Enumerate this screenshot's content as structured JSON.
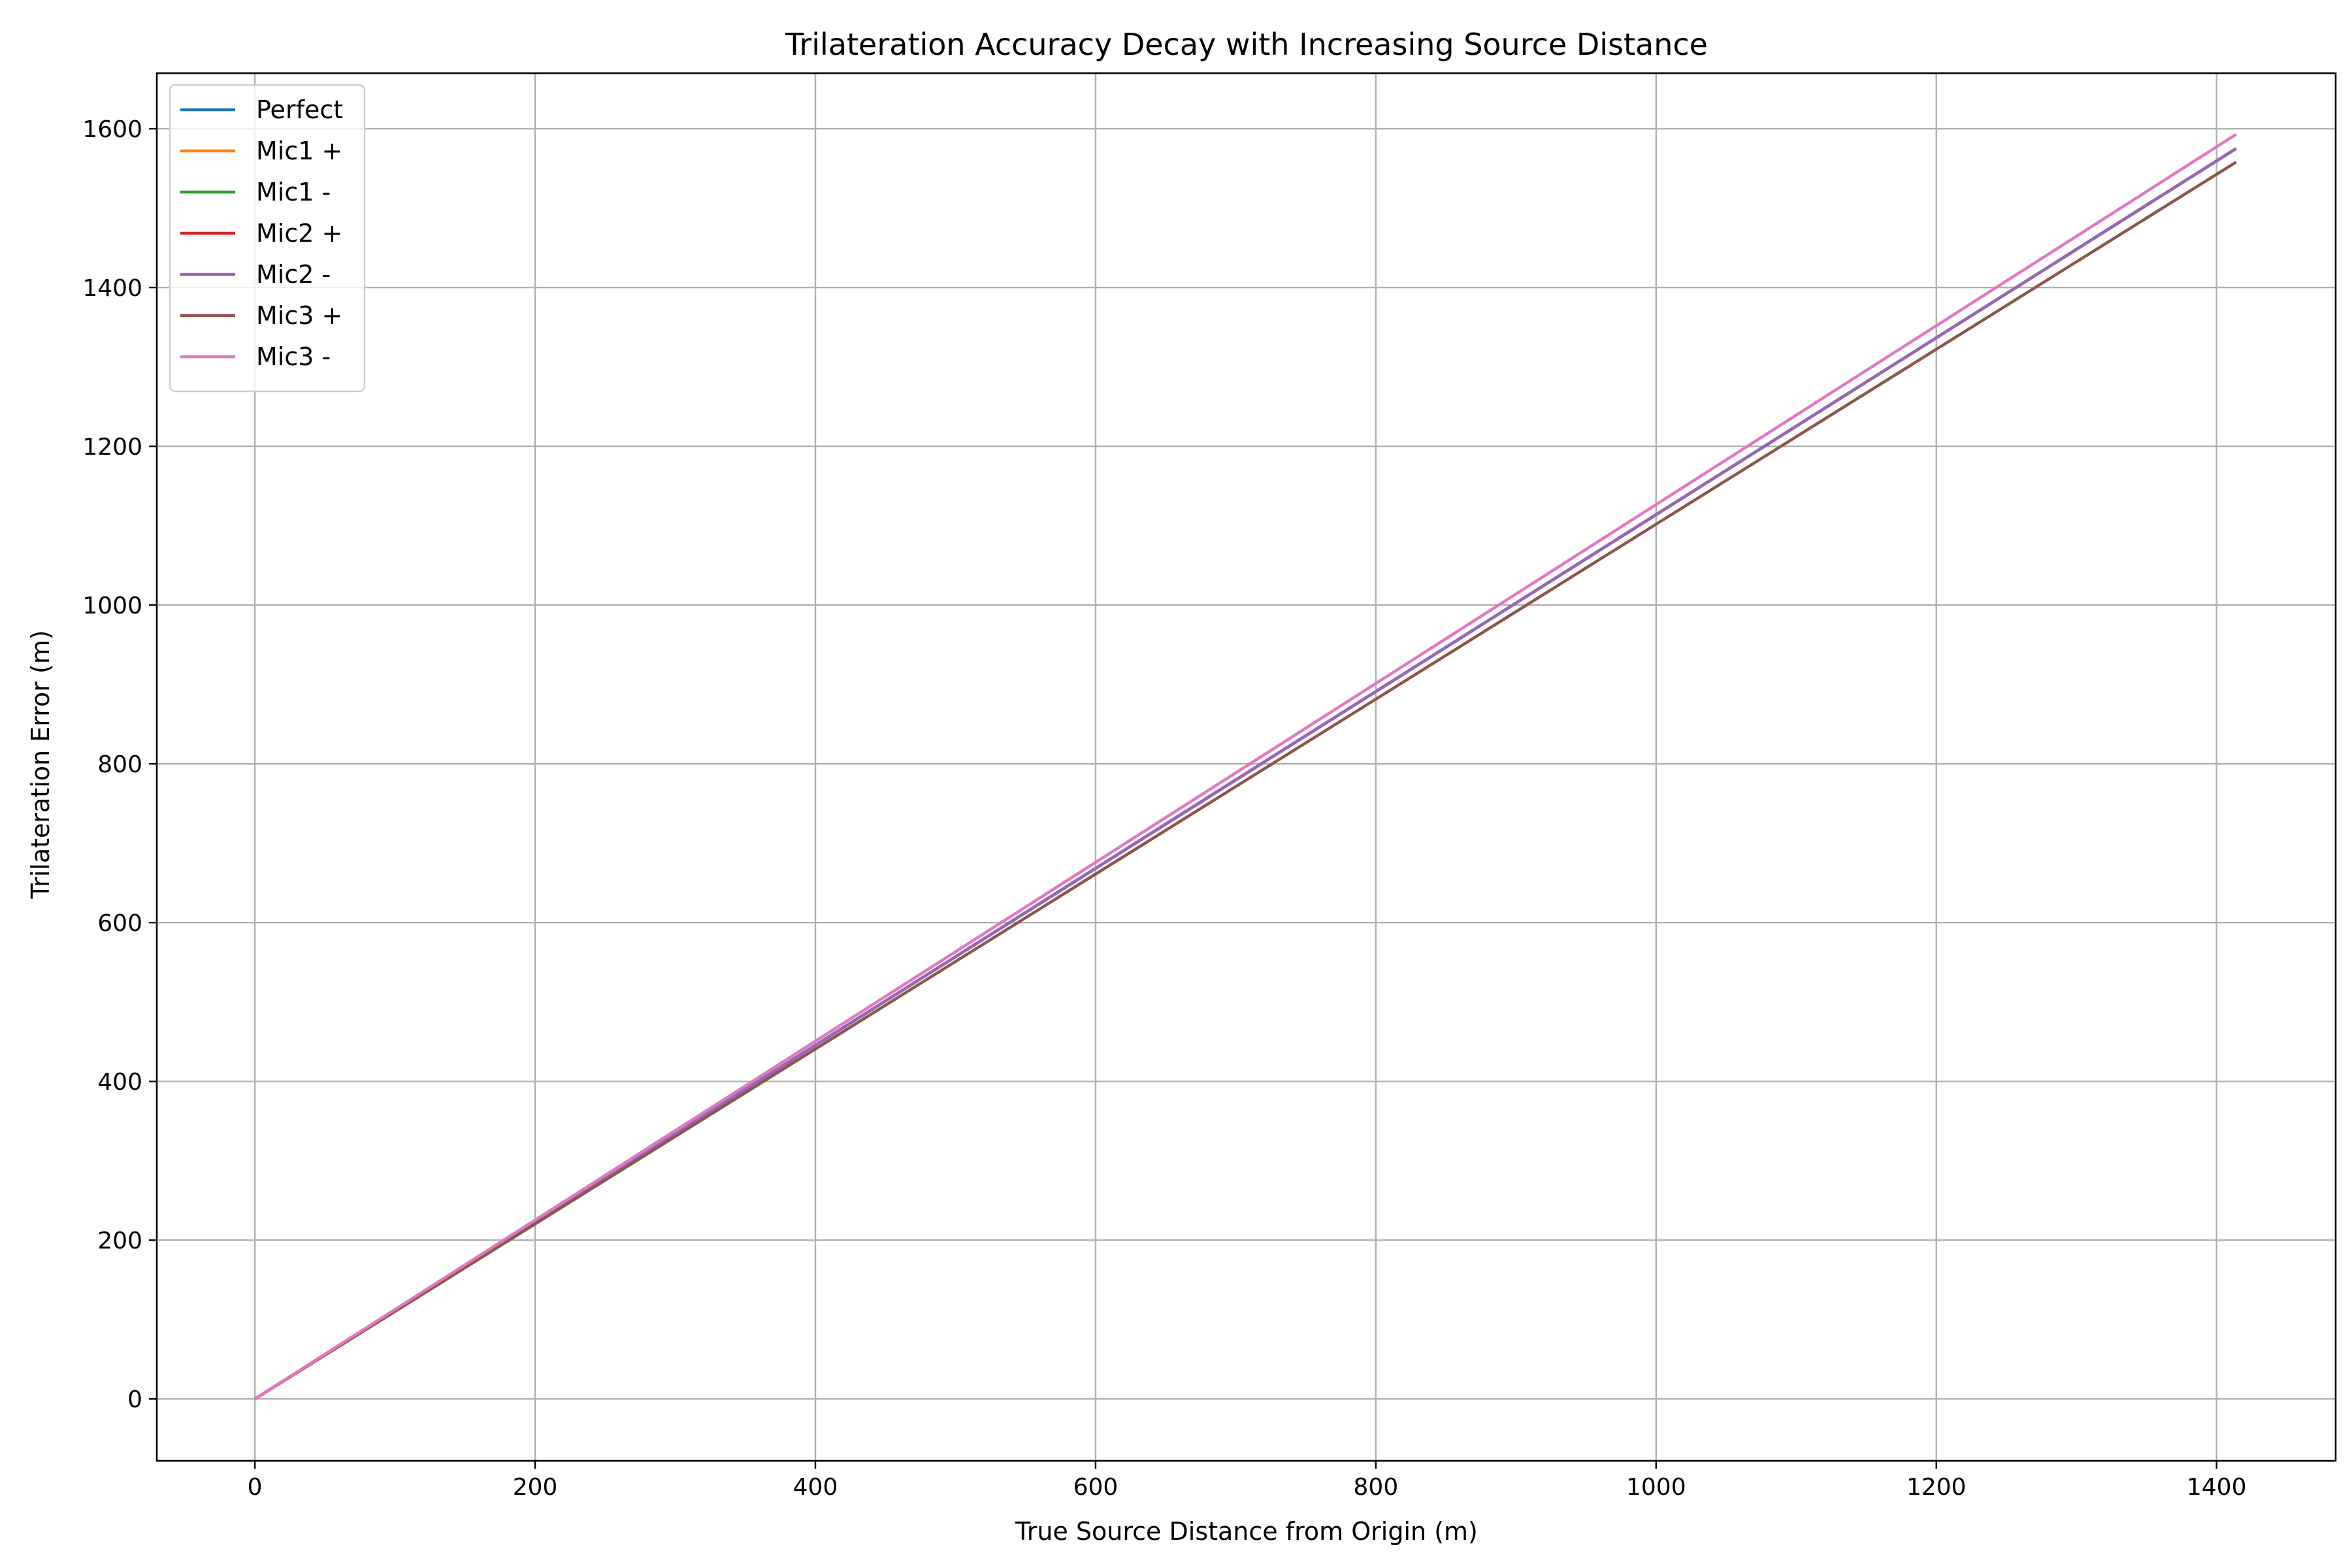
{
  "chart_data": {
    "type": "line",
    "title": "Trilateration Accuracy Decay with Increasing Source Distance",
    "xlabel": "True Source Distance from Origin (m)",
    "ylabel": "Trilateration Error (m)",
    "xlim": [
      -70,
      1485
    ],
    "ylim": [
      -78,
      1670
    ],
    "xticks": [
      0,
      200,
      400,
      600,
      800,
      1000,
      1200,
      1400
    ],
    "yticks": [
      0,
      200,
      400,
      600,
      800,
      1000,
      1200,
      1400,
      1600
    ],
    "xtick_labels": [
      "0",
      "200",
      "400",
      "600",
      "800",
      "1000",
      "1200",
      "1400"
    ],
    "ytick_labels": [
      "0",
      "200",
      "400",
      "600",
      "800",
      "1000",
      "1200",
      "1400",
      "1600"
    ],
    "grid": true,
    "legend_position": "top-left",
    "series": [
      {
        "name": "Perfect",
        "color": "#1f77b4",
        "x": [
          0,
          1414
        ],
        "y": [
          0,
          1575
        ]
      },
      {
        "name": "Mic1 +",
        "color": "#ff7f0e",
        "x": [
          0,
          1414
        ],
        "y": [
          0,
          1575
        ]
      },
      {
        "name": "Mic1 -",
        "color": "#2ca02c",
        "x": [
          0,
          1414
        ],
        "y": [
          0,
          1575
        ]
      },
      {
        "name": "Mic2 +",
        "color": "#d62728",
        "x": [
          0,
          1414
        ],
        "y": [
          0,
          1575
        ]
      },
      {
        "name": "Mic2 -",
        "color": "#9467bd",
        "x": [
          0,
          1414
        ],
        "y": [
          0,
          1575
        ]
      },
      {
        "name": "Mic3 +",
        "color": "#8c564b",
        "x": [
          0,
          1414
        ],
        "y": [
          0,
          1558
        ]
      },
      {
        "name": "Mic3 -",
        "color": "#e377c2",
        "x": [
          0,
          1414
        ],
        "y": [
          0,
          1593
        ]
      }
    ]
  }
}
